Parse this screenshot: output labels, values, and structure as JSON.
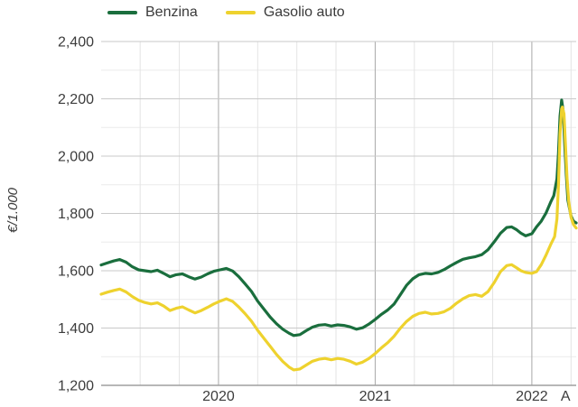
{
  "colors": {
    "background": "#ffffff",
    "text": "#3c3c3c",
    "benzina_green": "#1a6e3d",
    "gasolio_yellow": "#eed22e",
    "grid_major": "#c9c9c9",
    "grid_minor": "#ebebeb",
    "grid_quarter": "#e4e4e4",
    "grid_year": "#a8a8a8",
    "axis_line": "#9f9f9f"
  },
  "chart_data": {
    "type": "line",
    "title": "",
    "xlabel": "",
    "ylabel": "€/1.000",
    "legend_position": "top-left",
    "grid": true,
    "xlim": [
      2019.251,
      2022.283
    ],
    "ylim": [
      1200,
      2400
    ],
    "y_ticks": [
      {
        "value": 2400,
        "label": "2,400"
      },
      {
        "value": 2200,
        "label": "2,200"
      },
      {
        "value": 2000,
        "label": "2,000"
      },
      {
        "value": 1800,
        "label": "1,800"
      },
      {
        "value": 1600,
        "label": "1,600"
      },
      {
        "value": 1400,
        "label": "1,400"
      },
      {
        "value": 1200,
        "label": "1,200"
      }
    ],
    "x_ticks": [
      {
        "value": 2020,
        "label": "2020"
      },
      {
        "value": 2021,
        "label": "2021"
      },
      {
        "value": 2022,
        "label": "2022"
      },
      {
        "value": 2022.215,
        "label": "A"
      }
    ],
    "series": [
      {
        "name": "Benzina",
        "color": "#1a6e3d",
        "points": [
          [
            2019.251,
            1620
          ],
          [
            2019.29,
            1627
          ],
          [
            2019.33,
            1634
          ],
          [
            2019.37,
            1639
          ],
          [
            2019.41,
            1630
          ],
          [
            2019.45,
            1614
          ],
          [
            2019.49,
            1603
          ],
          [
            2019.53,
            1600
          ],
          [
            2019.57,
            1597
          ],
          [
            2019.61,
            1602
          ],
          [
            2019.65,
            1591
          ],
          [
            2019.69,
            1579
          ],
          [
            2019.73,
            1586
          ],
          [
            2019.77,
            1589
          ],
          [
            2019.81,
            1579
          ],
          [
            2019.85,
            1571
          ],
          [
            2019.89,
            1578
          ],
          [
            2019.93,
            1589
          ],
          [
            2019.97,
            1598
          ],
          [
            2020.01,
            1603
          ],
          [
            2020.05,
            1608
          ],
          [
            2020.09,
            1599
          ],
          [
            2020.13,
            1579
          ],
          [
            2020.17,
            1554
          ],
          [
            2020.21,
            1528
          ],
          [
            2020.25,
            1494
          ],
          [
            2020.29,
            1466
          ],
          [
            2020.33,
            1438
          ],
          [
            2020.37,
            1415
          ],
          [
            2020.41,
            1396
          ],
          [
            2020.45,
            1382
          ],
          [
            2020.48,
            1374
          ],
          [
            2020.52,
            1377
          ],
          [
            2020.56,
            1391
          ],
          [
            2020.6,
            1403
          ],
          [
            2020.64,
            1410
          ],
          [
            2020.68,
            1412
          ],
          [
            2020.72,
            1407
          ],
          [
            2020.76,
            1411
          ],
          [
            2020.8,
            1409
          ],
          [
            2020.84,
            1404
          ],
          [
            2020.88,
            1396
          ],
          [
            2020.92,
            1401
          ],
          [
            2020.96,
            1414
          ],
          [
            2021.0,
            1430
          ],
          [
            2021.04,
            1448
          ],
          [
            2021.08,
            1463
          ],
          [
            2021.12,
            1483
          ],
          [
            2021.16,
            1516
          ],
          [
            2021.2,
            1549
          ],
          [
            2021.24,
            1572
          ],
          [
            2021.28,
            1586
          ],
          [
            2021.32,
            1591
          ],
          [
            2021.36,
            1589
          ],
          [
            2021.4,
            1594
          ],
          [
            2021.44,
            1604
          ],
          [
            2021.48,
            1617
          ],
          [
            2021.52,
            1629
          ],
          [
            2021.56,
            1640
          ],
          [
            2021.6,
            1645
          ],
          [
            2021.64,
            1649
          ],
          [
            2021.68,
            1656
          ],
          [
            2021.72,
            1673
          ],
          [
            2021.76,
            1701
          ],
          [
            2021.8,
            1731
          ],
          [
            2021.84,
            1751
          ],
          [
            2021.87,
            1753
          ],
          [
            2021.9,
            1744
          ],
          [
            2021.93,
            1731
          ],
          [
            2021.96,
            1722
          ],
          [
            2022.0,
            1729
          ],
          [
            2022.03,
            1753
          ],
          [
            2022.06,
            1773
          ],
          [
            2022.09,
            1801
          ],
          [
            2022.12,
            1839
          ],
          [
            2022.14,
            1862
          ],
          [
            2022.16,
            1921
          ],
          [
            2022.17,
            2012
          ],
          [
            2022.18,
            2140
          ],
          [
            2022.19,
            2196
          ],
          [
            2022.2,
            2158
          ],
          [
            2022.21,
            2040
          ],
          [
            2022.22,
            1932
          ],
          [
            2022.23,
            1846
          ],
          [
            2022.25,
            1791
          ],
          [
            2022.265,
            1773
          ],
          [
            2022.283,
            1767
          ]
        ]
      },
      {
        "name": "Gasolio auto",
        "color": "#eed22e",
        "points": [
          [
            2019.251,
            1518
          ],
          [
            2019.29,
            1525
          ],
          [
            2019.33,
            1531
          ],
          [
            2019.37,
            1536
          ],
          [
            2019.41,
            1526
          ],
          [
            2019.45,
            1510
          ],
          [
            2019.49,
            1497
          ],
          [
            2019.53,
            1489
          ],
          [
            2019.57,
            1484
          ],
          [
            2019.61,
            1488
          ],
          [
            2019.65,
            1477
          ],
          [
            2019.69,
            1461
          ],
          [
            2019.73,
            1469
          ],
          [
            2019.77,
            1474
          ],
          [
            2019.81,
            1463
          ],
          [
            2019.85,
            1453
          ],
          [
            2019.89,
            1461
          ],
          [
            2019.93,
            1472
          ],
          [
            2019.97,
            1484
          ],
          [
            2020.01,
            1494
          ],
          [
            2020.05,
            1502
          ],
          [
            2020.09,
            1493
          ],
          [
            2020.13,
            1473
          ],
          [
            2020.17,
            1450
          ],
          [
            2020.21,
            1424
          ],
          [
            2020.25,
            1392
          ],
          [
            2020.29,
            1364
          ],
          [
            2020.33,
            1336
          ],
          [
            2020.37,
            1308
          ],
          [
            2020.41,
            1283
          ],
          [
            2020.45,
            1264
          ],
          [
            2020.48,
            1254
          ],
          [
            2020.52,
            1257
          ],
          [
            2020.56,
            1271
          ],
          [
            2020.6,
            1284
          ],
          [
            2020.64,
            1291
          ],
          [
            2020.68,
            1294
          ],
          [
            2020.72,
            1289
          ],
          [
            2020.76,
            1294
          ],
          [
            2020.8,
            1291
          ],
          [
            2020.84,
            1284
          ],
          [
            2020.88,
            1274
          ],
          [
            2020.92,
            1281
          ],
          [
            2020.96,
            1294
          ],
          [
            2021.0,
            1311
          ],
          [
            2021.04,
            1331
          ],
          [
            2021.08,
            1349
          ],
          [
            2021.12,
            1371
          ],
          [
            2021.16,
            1399
          ],
          [
            2021.2,
            1423
          ],
          [
            2021.24,
            1441
          ],
          [
            2021.28,
            1451
          ],
          [
            2021.32,
            1455
          ],
          [
            2021.36,
            1449
          ],
          [
            2021.4,
            1451
          ],
          [
            2021.44,
            1457
          ],
          [
            2021.48,
            1469
          ],
          [
            2021.52,
            1487
          ],
          [
            2021.56,
            1502
          ],
          [
            2021.6,
            1513
          ],
          [
            2021.64,
            1517
          ],
          [
            2021.68,
            1511
          ],
          [
            2021.72,
            1527
          ],
          [
            2021.76,
            1559
          ],
          [
            2021.8,
            1597
          ],
          [
            2021.84,
            1618
          ],
          [
            2021.87,
            1621
          ],
          [
            2021.9,
            1611
          ],
          [
            2021.93,
            1600
          ],
          [
            2021.96,
            1594
          ],
          [
            2022.0,
            1591
          ],
          [
            2022.03,
            1597
          ],
          [
            2022.06,
            1621
          ],
          [
            2022.09,
            1654
          ],
          [
            2022.12,
            1691
          ],
          [
            2022.145,
            1719
          ],
          [
            2022.16,
            1781
          ],
          [
            2022.17,
            1901
          ],
          [
            2022.18,
            2078
          ],
          [
            2022.19,
            2165
          ],
          [
            2022.195,
            2171
          ],
          [
            2022.205,
            2148
          ],
          [
            2022.215,
            2035
          ],
          [
            2022.225,
            1922
          ],
          [
            2022.235,
            1843
          ],
          [
            2022.25,
            1786
          ],
          [
            2022.265,
            1762
          ],
          [
            2022.283,
            1749
          ]
        ]
      }
    ]
  }
}
